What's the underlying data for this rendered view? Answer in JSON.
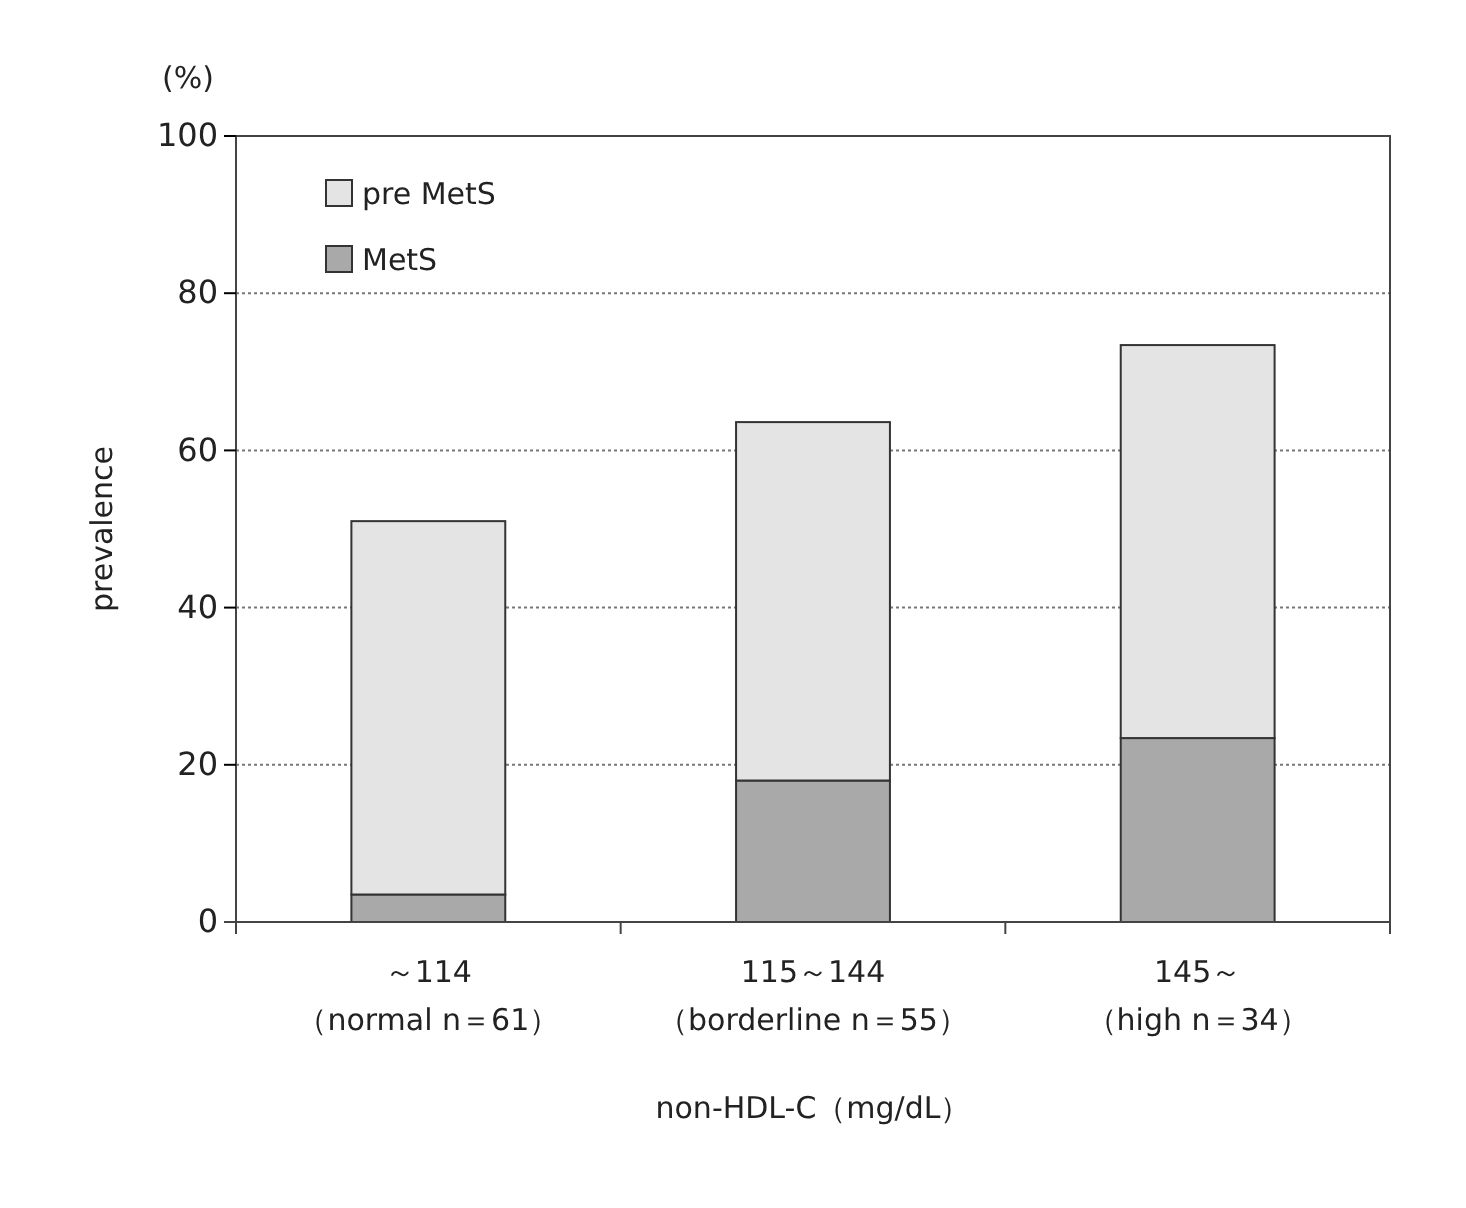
{
  "chart_data": {
    "type": "bar",
    "stacked": true,
    "xlabel": "non-HDL-C（mg/dL）",
    "ylabel": "prevalence",
    "annotations": [
      "(%)"
    ],
    "categories": [
      "～114（normal n＝61）",
      "115～144（borderline n＝55）",
      "145～（high n＝34）"
    ],
    "series": [
      {
        "name": "MetS",
        "color": "#a9a9a9",
        "values": [
          3.5,
          18,
          23.4
        ]
      },
      {
        "name": "pre MetS",
        "color": "#e4e4e4",
        "values": [
          47.5,
          45.6,
          50
        ]
      }
    ],
    "ylim": [
      0,
      100
    ],
    "yticks": [
      0,
      20,
      40,
      60,
      80,
      100
    ],
    "grid": "y",
    "legend": "top left"
  }
}
